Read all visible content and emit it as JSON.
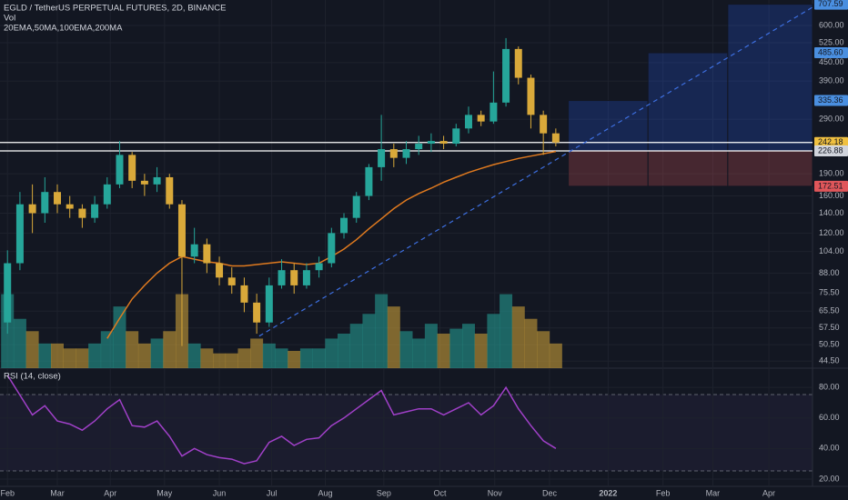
{
  "chart_data": {
    "type": "candlestick",
    "title": "EGLD / TetherUS PERPETUAL FUTURES, 2D, BINANCE",
    "volume_label": "Vol",
    "indicators_label": "20EMA,50MA,100EMA,200MA",
    "rsi_label": "RSI (14, close)",
    "log_scale": true,
    "up_color": "#26a69a",
    "down_color": "#d9a93a",
    "ma_color": "#e07a1f",
    "rsi_color": "#a040c8",
    "trend_color": "#3d6fe0",
    "xlim": [
      -0.6,
      64.6
    ],
    "xticks": [
      {
        "value": 0,
        "label": "Feb"
      },
      {
        "value": 4,
        "label": "Mar"
      },
      {
        "value": 8.25,
        "label": "Apr"
      },
      {
        "value": 12.6,
        "label": "May"
      },
      {
        "value": 17,
        "label": "Jun"
      },
      {
        "value": 21.2,
        "label": "Jul"
      },
      {
        "value": 25.5,
        "label": "Aug"
      },
      {
        "value": 30.2,
        "label": "Sep"
      },
      {
        "value": 34.7,
        "label": "Oct"
      },
      {
        "value": 39.1,
        "label": "Nov"
      },
      {
        "value": 43.5,
        "label": "Dec"
      },
      {
        "value": 48.2,
        "label": "2022"
      },
      {
        "value": 52.6,
        "label": "Feb"
      },
      {
        "value": 56.6,
        "label": "Mar"
      },
      {
        "value": 61.1,
        "label": "Apr"
      }
    ],
    "ylim": [
      42.1,
      731
    ],
    "yticks": [
      {
        "value": 600,
        "label": "600.00"
      },
      {
        "value": 525,
        "label": "525.00"
      },
      {
        "value": 450,
        "label": "450.00"
      },
      {
        "value": 390,
        "label": "390.00"
      },
      {
        "value": 290,
        "label": "290.00"
      },
      {
        "value": 190,
        "label": "190.00"
      },
      {
        "value": 160,
        "label": "160.00"
      },
      {
        "value": 140,
        "label": "140.00"
      },
      {
        "value": 120,
        "label": "120.00"
      },
      {
        "value": 104,
        "label": "104.00"
      },
      {
        "value": 88,
        "label": "88.00"
      },
      {
        "value": 75.5,
        "label": "75.50"
      },
      {
        "value": 65.5,
        "label": "65.50"
      },
      {
        "value": 57.5,
        "label": "57.50"
      },
      {
        "value": 50.5,
        "label": "50.50"
      },
      {
        "value": 44.5,
        "label": "44.50"
      }
    ],
    "price_labels": [
      {
        "value": 707.59,
        "label": "707.59",
        "color": "#4a8fe0"
      },
      {
        "value": 485.6,
        "label": "485.60",
        "color": "#4a8fe0"
      },
      {
        "value": 335.36,
        "label": "335.36",
        "color": "#4a8fe0"
      },
      {
        "value": 242.18,
        "label": "242.18",
        "color": "#f0c040"
      },
      {
        "value": 226.88,
        "label": "226.88",
        "color": "#d1d4dc"
      },
      {
        "value": 172.51,
        "label": "172.51",
        "color": "#e0565a"
      }
    ],
    "position_x": [
      45,
      51.4,
      57.8,
      64.6
    ],
    "trendline": {
      "x": [
        20.2,
        64.6
      ],
      "y": [
        54,
        691
      ]
    },
    "open": [
      60,
      95,
      150,
      140,
      165,
      150,
      145,
      135,
      150,
      175,
      220,
      180,
      175,
      185,
      150,
      100,
      110,
      95,
      85,
      80,
      70,
      60,
      80,
      90,
      80,
      90,
      95,
      120,
      135,
      160,
      200,
      230,
      215,
      230,
      240,
      245,
      240,
      270,
      300,
      285,
      330,
      500,
      400,
      300,
      260
    ],
    "high": [
      105,
      165,
      175,
      185,
      175,
      160,
      150,
      160,
      185,
      245,
      225,
      190,
      200,
      190,
      155,
      125,
      115,
      100,
      92,
      85,
      75,
      85,
      98,
      95,
      95,
      100,
      125,
      140,
      165,
      205,
      300,
      240,
      245,
      255,
      260,
      255,
      280,
      320,
      310,
      420,
      544,
      510,
      410,
      310,
      270
    ],
    "low": [
      55,
      90,
      120,
      130,
      140,
      135,
      125,
      130,
      145,
      170,
      170,
      160,
      165,
      145,
      50,
      95,
      88,
      80,
      75,
      65,
      55,
      58,
      78,
      75,
      78,
      85,
      92,
      115,
      130,
      155,
      180,
      200,
      205,
      220,
      225,
      230,
      235,
      260,
      275,
      280,
      320,
      380,
      270,
      220,
      235
    ],
    "close": [
      95,
      150,
      140,
      165,
      150,
      145,
      135,
      150,
      175,
      220,
      180,
      175,
      185,
      150,
      100,
      110,
      95,
      85,
      80,
      70,
      60,
      80,
      90,
      80,
      90,
      95,
      120,
      135,
      160,
      200,
      230,
      215,
      230,
      240,
      245,
      240,
      270,
      300,
      285,
      330,
      500,
      400,
      300,
      260,
      242.18
    ],
    "volume": [
      30,
      20,
      15,
      10,
      10,
      8,
      8,
      10,
      15,
      25,
      15,
      10,
      12,
      15,
      30,
      10,
      8,
      6,
      6,
      8,
      12,
      10,
      8,
      7,
      8,
      8,
      12,
      14,
      18,
      22,
      30,
      25,
      15,
      12,
      18,
      14,
      16,
      18,
      14,
      22,
      30,
      25,
      20,
      15,
      10
    ],
    "vlim": [
      0,
      35
    ],
    "ma": [
      null,
      null,
      null,
      null,
      null,
      null,
      null,
      null,
      53,
      62,
      72,
      80,
      88,
      95,
      100,
      98,
      96,
      95,
      93,
      93,
      94,
      95,
      96,
      95,
      94,
      95,
      100,
      106,
      114,
      124,
      134,
      145,
      155,
      163,
      170,
      178,
      185,
      192,
      198,
      204,
      209,
      214,
      218,
      222,
      226
    ],
    "rsi": [
      88,
      75,
      62,
      68,
      58,
      56,
      52,
      58,
      66,
      72,
      55,
      54,
      58,
      48,
      35,
      40,
      36,
      34,
      33,
      30,
      32,
      44,
      48,
      42,
      46,
      47,
      55,
      60,
      66,
      72,
      78,
      62,
      64,
      66,
      66,
      62,
      66,
      70,
      62,
      68,
      80,
      66,
      55,
      45,
      40
    ],
    "rsilim": [
      15.2,
      92.6
    ],
    "rsiticks": [
      {
        "value": 80,
        "label": "80.00"
      },
      {
        "value": 60,
        "label": "60.00"
      },
      {
        "value": 40,
        "label": "40.00"
      },
      {
        "value": 20,
        "label": "20.00"
      }
    ]
  }
}
